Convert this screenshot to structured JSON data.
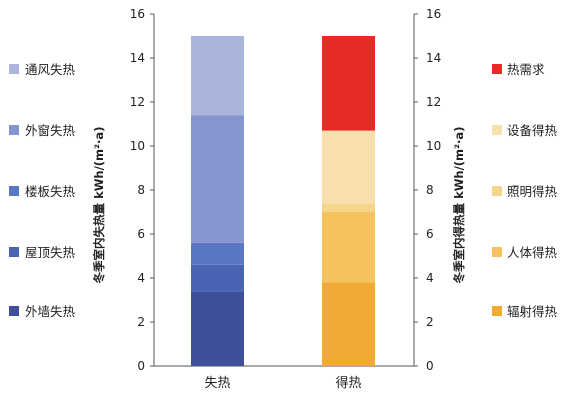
{
  "chart_data": {
    "type": "bar",
    "stacked": true,
    "categories": [
      "失热",
      "得热"
    ],
    "ylim": [
      0,
      16
    ],
    "y_ticks": [
      "0",
      "2",
      "4",
      "6",
      "8",
      "10",
      "12",
      "14",
      "16"
    ],
    "ylabel_left": "冬季室内失热量 kWh/(m²·a)",
    "ylabel_right": "冬季室内得热量 kWh/(m²·a)",
    "grid": false,
    "series": [
      {
        "name": "外墙失热",
        "category": "失热",
        "value": 3.4,
        "color": "#3f4f9c"
      },
      {
        "name": "屋顶失热",
        "category": "失热",
        "value": 1.2,
        "color": "#4964b2"
      },
      {
        "name": "楼板失热",
        "category": "失热",
        "value": 1.0,
        "color": "#5a77c4"
      },
      {
        "name": "外窗失热",
        "category": "失热",
        "value": 5.8,
        "color": "#8595cf"
      },
      {
        "name": "通风失热",
        "category": "失热",
        "value": 3.6,
        "color": "#aab4dc"
      },
      {
        "name": "辐射得热",
        "category": "得热",
        "value": 3.8,
        "color": "#f1ab34"
      },
      {
        "name": "人体得热",
        "category": "得热",
        "value": 3.2,
        "color": "#f4c35e"
      },
      {
        "name": "照明得热",
        "category": "得热",
        "value": 0.4,
        "color": "#f6d58b"
      },
      {
        "name": "设备得热",
        "category": "得热",
        "value": 3.3,
        "color": "#f7dfae"
      },
      {
        "name": "热需求",
        "category": "得热",
        "value": 4.3,
        "color": "#e62a27"
      }
    ],
    "legend_left": [
      "通风失热",
      "外窗失热",
      "楼板失热",
      "屋顶失热",
      "外墙失热"
    ],
    "legend_right": [
      "热需求",
      "设备得热",
      "照明得热",
      "人体得热",
      "辐射得热"
    ]
  }
}
